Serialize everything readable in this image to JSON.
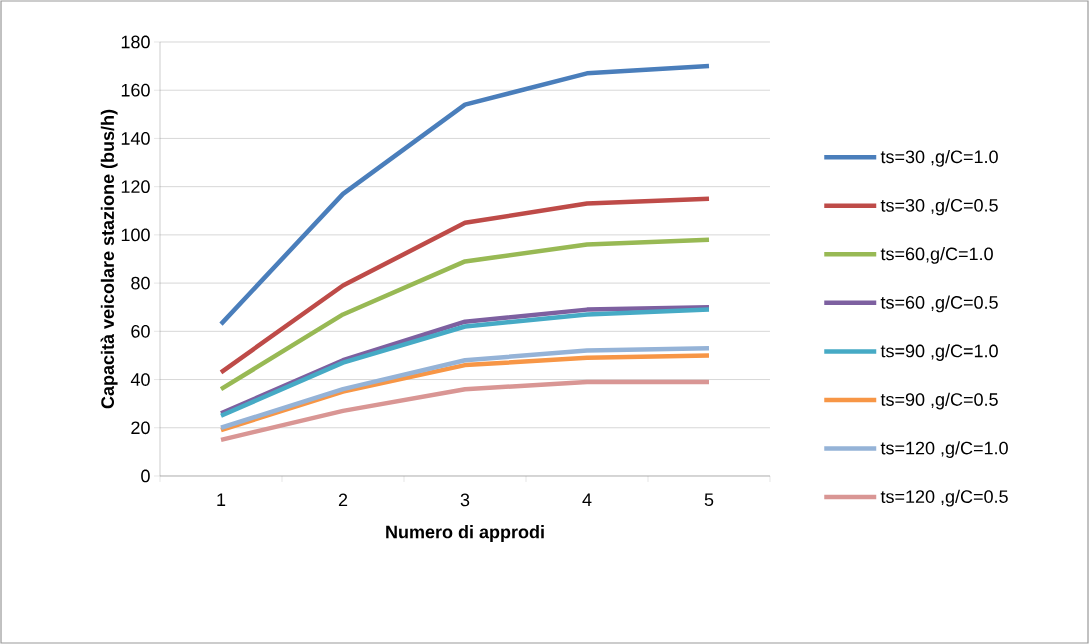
{
  "chart_data": {
    "type": "line",
    "xlabel": "Numero di approdi",
    "ylabel": "Capacità veicolare stazione (bus/h)",
    "categories": [
      "1",
      "2",
      "3",
      "4",
      "5"
    ],
    "series": [
      {
        "name": "ts=30 ,g/C=1.0",
        "color": "#4a7ebb",
        "values": [
          63,
          117,
          154,
          167,
          170
        ]
      },
      {
        "name": "ts=30 ,g/C=0.5",
        "color": "#be4b48",
        "values": [
          43,
          79,
          105,
          113,
          115
        ]
      },
      {
        "name": "ts=60,g/C=1.0",
        "color": "#98b954",
        "values": [
          36,
          67,
          89,
          96,
          98
        ]
      },
      {
        "name": "ts=60 ,g/C=0.5",
        "color": "#7d60a0",
        "values": [
          26,
          48,
          64,
          69,
          70
        ]
      },
      {
        "name": "ts=90 ,g/C=1.0",
        "color": "#46aac5",
        "values": [
          25,
          47,
          62,
          67,
          69
        ]
      },
      {
        "name": "ts=90 ,g/C=0.5",
        "color": "#f79646",
        "values": [
          19,
          35,
          46,
          49,
          50
        ]
      },
      {
        "name": "ts=120 ,g/C=1.0",
        "color": "#95b3d7",
        "values": [
          20,
          36,
          48,
          52,
          53
        ]
      },
      {
        "name": "ts=120 ,g/C=0.5",
        "color": "#d99694",
        "values": [
          15,
          27,
          36,
          39,
          39
        ]
      }
    ],
    "ylim": [
      0,
      180
    ],
    "yticks": [
      0,
      20,
      40,
      60,
      80,
      100,
      120,
      140,
      160,
      180
    ],
    "grid": "y",
    "legend": "right",
    "marker": "none",
    "line_style": "solid"
  }
}
